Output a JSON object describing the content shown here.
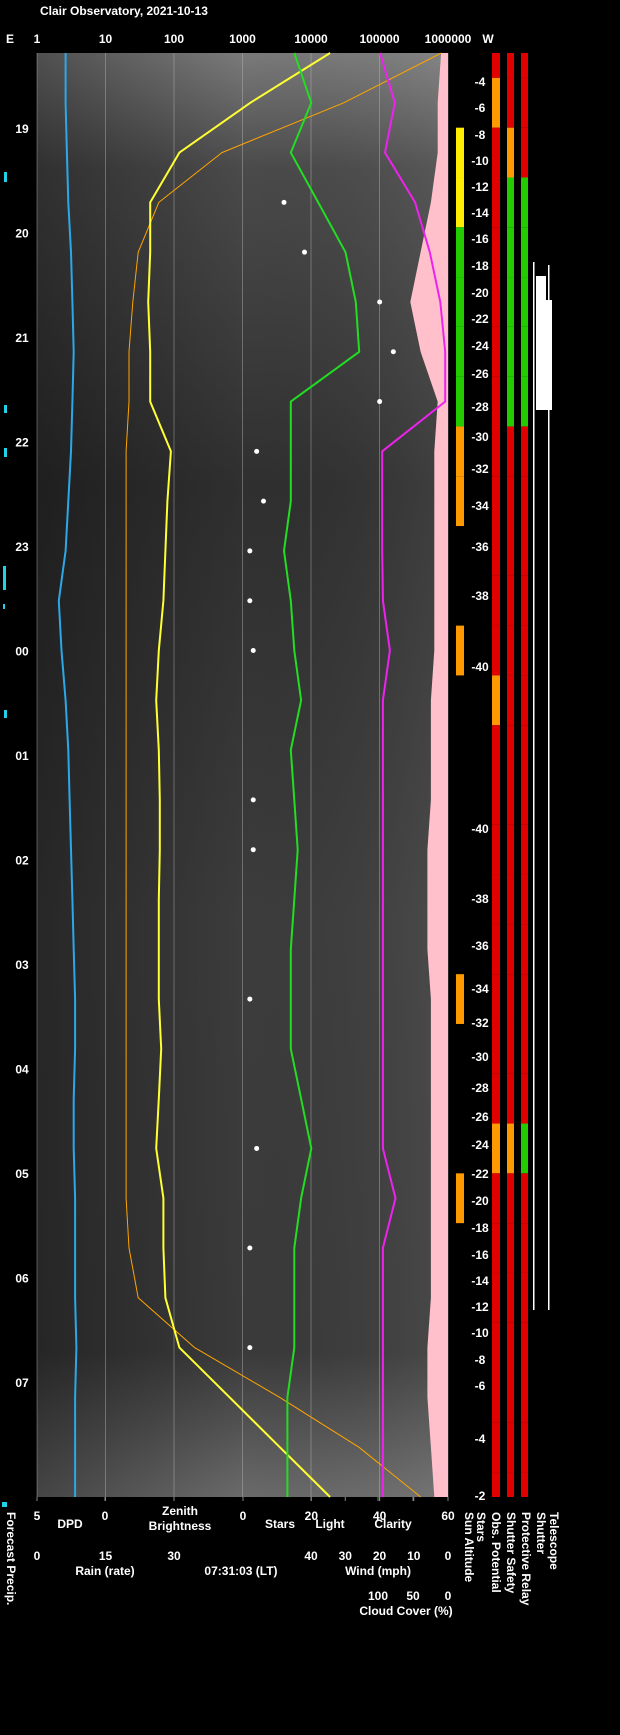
{
  "chart_data": {
    "type": "line",
    "title": "Clair Observatory, 2021-10-13",
    "direction_left": "E",
    "direction_right": "W",
    "timestamp": "07:31:03 (LT)",
    "time_labels": [
      "19",
      "20",
      "21",
      "22",
      "23",
      "00",
      "01",
      "02",
      "03",
      "04",
      "05",
      "06",
      "07"
    ],
    "sun_altitude_ticks": [
      -4,
      -6,
      -8,
      -10,
      -12,
      -14,
      -16,
      -18,
      -20,
      -22,
      -24,
      -26,
      -28,
      -30,
      -32,
      -34,
      -36,
      -38,
      -40,
      -40,
      -38,
      -36,
      -34,
      -32,
      -30,
      -28,
      -26,
      -24,
      -22,
      -20,
      -18,
      -16,
      -14,
      -12,
      -10,
      -8,
      -6,
      -4,
      -2
    ],
    "brightness_axis": {
      "scale": "log",
      "xlim": [
        1,
        1000000
      ],
      "xticks": [
        1,
        10,
        100,
        1000,
        10000,
        100000,
        1000000
      ],
      "grid": true
    },
    "dpd_axis": {
      "xlim": [
        5,
        0
      ],
      "xticks": [
        5,
        0
      ]
    },
    "scale_axis": {
      "xlim": [
        0,
        60
      ],
      "xticks": [
        0,
        20,
        40,
        60
      ]
    },
    "rain_axis": {
      "label": "Rain (rate)",
      "xlim": [
        0,
        30
      ],
      "xticks": [
        0,
        15,
        30
      ]
    },
    "wind_axis": {
      "label": "Wind (mph)",
      "xlim": [
        40,
        0
      ],
      "xticks": [
        40,
        30,
        20,
        10,
        0
      ]
    },
    "cloud_axis": {
      "label": "Cloud Cover (%)",
      "xlim": [
        100,
        0
      ],
      "xticks": [
        100,
        50,
        0
      ]
    },
    "series": [
      {
        "name": "DPD",
        "color": "#2ba8e8",
        "axis": "dpd_axis",
        "style": "line",
        "values": [
          2.9,
          2.9,
          2.8,
          2.7,
          2.5,
          2.4,
          2.3,
          2.4,
          2.5,
          2.7,
          2.9,
          3.4,
          3.2,
          2.9,
          2.7,
          2.6,
          2.5,
          2.4,
          2.3,
          2.2,
          2.2,
          2.3,
          2.3,
          2.2,
          2.2,
          2.2,
          2.1,
          2.2,
          2.2,
          2.2
        ]
      },
      {
        "name": "Zenith Brightness",
        "color": "#ffff33",
        "axis": "brightness_axis",
        "style": "line",
        "values": [
          19000,
          1300,
          120,
          45,
          45,
          42,
          45,
          45,
          90,
          80,
          75,
          70,
          60,
          55,
          60,
          62,
          62,
          60,
          60,
          60,
          65,
          60,
          55,
          70,
          70,
          75,
          120,
          650,
          3500,
          19000
        ]
      },
      {
        "name": "Light",
        "color": "#ffa500",
        "label_color": "#f0d000",
        "axis": "brightness_axis",
        "style": "thin",
        "values": [
          800000,
          30000,
          500,
          60,
          30,
          25,
          22,
          22,
          20,
          20,
          20,
          20,
          20,
          20,
          20,
          20,
          20,
          20,
          20,
          20,
          20,
          20,
          20,
          20,
          22,
          30,
          200,
          3500,
          50000,
          400000
        ]
      },
      {
        "name": "Clarity",
        "color": "#22dd22",
        "axis": "scale_axis",
        "style": "line",
        "values": [
          15,
          20,
          14,
          22,
          30,
          33,
          34,
          14,
          14,
          14,
          12,
          14,
          15,
          17,
          14,
          15,
          16,
          15,
          14,
          14,
          14,
          17,
          20,
          17,
          15,
          15,
          15,
          13,
          13,
          13
        ]
      },
      {
        "name": "Stars",
        "color": "#ffffff",
        "axis": "scale_axis",
        "style": "dots",
        "values": [
          null,
          null,
          null,
          12,
          18,
          40,
          44,
          40,
          4,
          6,
          2,
          2,
          3,
          null,
          null,
          3,
          3,
          null,
          null,
          2,
          null,
          null,
          4,
          null,
          2,
          null,
          2,
          null,
          null,
          null
        ]
      },
      {
        "name": "Cloud Cover (%)",
        "color": "#ee22ee",
        "axis": "cloud_axis",
        "style": "line",
        "values": [
          97,
          76,
          90,
          47,
          26,
          11,
          4,
          4,
          94,
          94,
          94,
          93,
          83,
          93,
          93,
          93,
          93,
          93,
          93,
          93,
          93,
          93,
          93,
          75,
          93,
          93,
          93,
          93,
          93,
          93
        ]
      },
      {
        "name": "Wind (mph)",
        "color": "#ffc0cb",
        "axis": "wind_axis",
        "style": "area",
        "values": [
          2,
          3,
          3,
          5,
          8,
          11,
          8,
          3,
          4,
          4,
          4,
          4,
          4,
          5,
          5,
          5,
          6,
          6,
          6,
          5,
          5,
          5,
          5,
          5,
          5,
          5,
          6,
          6,
          5,
          4
        ]
      }
    ],
    "forecast_precip_label": "Forecast Precip.",
    "stars_column_label": "Stars",
    "status_columns": [
      {
        "name": "Sun Altitude",
        "colors": [
          null,
          null,
          "#ffee00",
          "#ffee00",
          "#22cc00",
          "#22cc00",
          "#22cc00",
          "#22cc00",
          "#ff9900",
          "#ff9900",
          null,
          null,
          "#ff9900",
          null,
          null,
          null,
          null,
          null,
          null,
          "#ff9900",
          null,
          null,
          null,
          "#ff9900",
          null,
          null,
          null,
          null,
          null,
          null
        ]
      },
      {
        "name": "Obs. Potential",
        "colors": [
          "#e00000",
          "#ff9900",
          "#e00000",
          "#e00000",
          "#e00000",
          "#e00000",
          "#e00000",
          "#e00000",
          "#e00000",
          "#e00000",
          "#e00000",
          "#e00000",
          "#e00000",
          "#ff9900",
          "#e00000",
          "#e00000",
          "#e00000",
          "#e00000",
          "#e00000",
          "#e00000",
          "#e00000",
          "#e00000",
          "#ff9900",
          "#e00000",
          "#e00000",
          "#e00000",
          "#e00000",
          "#e00000",
          "#e00000",
          "#e00000"
        ]
      },
      {
        "name": "Shutter Safety",
        "colors": [
          "#e00000",
          "#e00000",
          "#ff9900",
          "#22cc00",
          "#22cc00",
          "#22cc00",
          "#22cc00",
          "#22cc00",
          "#e00000",
          "#e00000",
          "#e00000",
          "#e00000",
          "#e00000",
          "#e00000",
          "#e00000",
          "#e00000",
          "#e00000",
          "#e00000",
          "#e00000",
          "#e00000",
          "#e00000",
          "#e00000",
          "#ff9900",
          "#e00000",
          "#e00000",
          "#e00000",
          "#e00000",
          "#e00000",
          "#e00000",
          "#e00000"
        ]
      },
      {
        "name": "Protective Relay",
        "colors": [
          "#e00000",
          "#e00000",
          "#e00000",
          "#22cc00",
          "#22cc00",
          "#22cc00",
          "#22cc00",
          "#22cc00",
          "#e00000",
          "#e00000",
          "#e00000",
          "#e00000",
          "#e00000",
          "#e00000",
          "#e00000",
          "#e00000",
          "#e00000",
          "#e00000",
          "#e00000",
          "#e00000",
          "#e00000",
          "#e00000",
          "#22cc00",
          "#e00000",
          "#e00000",
          "#e00000",
          "#e00000",
          "#e00000",
          "#e00000",
          "#e00000"
        ]
      }
    ],
    "shutter_label": "Shutter",
    "telescope_label": "Telescope"
  }
}
